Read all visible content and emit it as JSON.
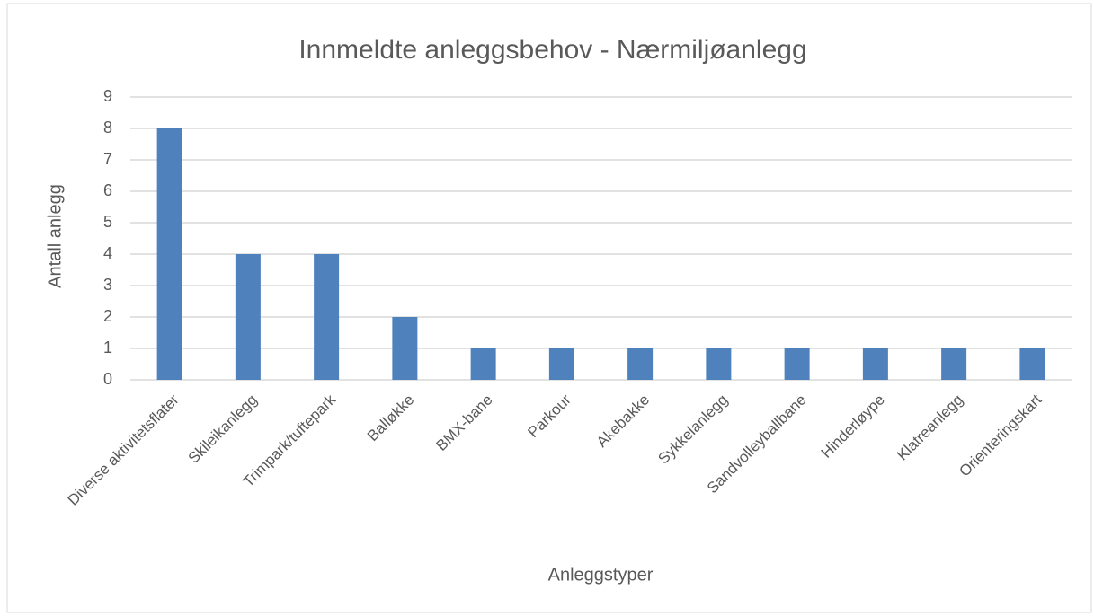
{
  "chart_data": {
    "type": "bar",
    "title": "Innmeldte anleggsbehov - Nærmiljøanlegg",
    "x_label": "Anleggstyper",
    "y_label": "Antall anlegg",
    "categories": [
      "Diverse aktivitetsflater",
      "Skileikanlegg",
      "Trimpark/tuftepark",
      "Balløkke",
      "BMX-bane",
      "Parkour",
      "Akebakke",
      "Sykkelanlegg",
      "Sandvolleyballbane",
      "Hinderløype",
      "Klatreanlegg",
      "Orienteringskart"
    ],
    "values": [
      8,
      4,
      4,
      2,
      1,
      1,
      1,
      1,
      1,
      1,
      1,
      1
    ],
    "color": "#4f81bd",
    "ylim": [
      0,
      9
    ],
    "yticks": [
      0,
      1,
      2,
      3,
      4,
      5,
      6,
      7,
      8,
      9
    ],
    "grid": true
  }
}
